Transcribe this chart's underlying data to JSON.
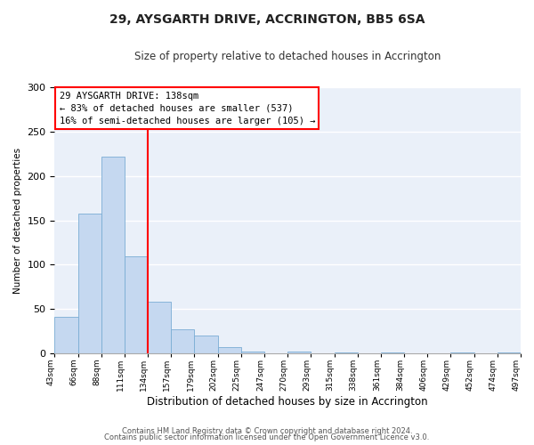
{
  "title": "29, AYSGARTH DRIVE, ACCRINGTON, BB5 6SA",
  "subtitle": "Size of property relative to detached houses in Accrington",
  "xlabel": "Distribution of detached houses by size in Accrington",
  "ylabel": "Number of detached properties",
  "footer_line1": "Contains HM Land Registry data © Crown copyright and database right 2024.",
  "footer_line2": "Contains public sector information licensed under the Open Government Licence v3.0.",
  "bin_labels": [
    "43sqm",
    "66sqm",
    "88sqm",
    "111sqm",
    "134sqm",
    "157sqm",
    "179sqm",
    "202sqm",
    "225sqm",
    "247sqm",
    "270sqm",
    "293sqm",
    "315sqm",
    "338sqm",
    "361sqm",
    "384sqm",
    "406sqm",
    "429sqm",
    "452sqm",
    "474sqm",
    "497sqm"
  ],
  "counts": [
    41,
    158,
    222,
    109,
    58,
    27,
    20,
    7,
    2,
    0,
    2,
    0,
    1,
    0,
    1,
    0,
    0,
    1,
    0,
    1
  ],
  "bar_color": "#c5d8f0",
  "bar_edge_color": "#7aadd4",
  "vline_index": 4,
  "vline_color": "red",
  "annotation_title": "29 AYSGARTH DRIVE: 138sqm",
  "annotation_line1": "← 83% of detached houses are smaller (537)",
  "annotation_line2": "16% of semi-detached houses are larger (105) →",
  "annotation_box_color": "white",
  "annotation_box_edge_color": "red",
  "ylim": [
    0,
    300
  ],
  "yticks": [
    0,
    50,
    100,
    150,
    200,
    250,
    300
  ],
  "bg_color": "#eaf0f9",
  "grid_color": "white",
  "fig_bg_color": "white"
}
